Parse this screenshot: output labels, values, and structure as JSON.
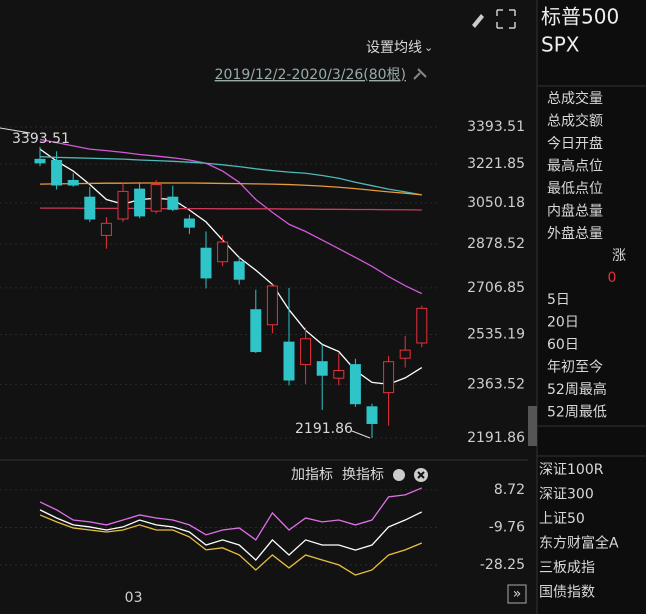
{
  "toolbar": {
    "ma_setting": "设置均线",
    "range": "2019/12/2-2020/3/26(80根)",
    "add_indicator": "加指标",
    "switch_indicator": "换指标"
  },
  "chart_data": [
    {
      "type": "candlestick",
      "log_scale": true,
      "ylim": [
        2131,
        3575
      ],
      "yticks": [
        {
          "value": 3393.51,
          "label": "3393.51"
        },
        {
          "value": 3221.85,
          "label": "3221.85"
        },
        {
          "value": 3050.18,
          "label": "3050.18"
        },
        {
          "value": 2878.52,
          "label": "2878.52"
        },
        {
          "value": 2706.85,
          "label": "2706.85"
        },
        {
          "value": 2535.19,
          "label": "2535.19"
        },
        {
          "value": 2363.52,
          "label": "2363.52"
        },
        {
          "value": 2191.86,
          "label": "2191.86"
        }
      ],
      "grid": true,
      "up_color": "#e8313a",
      "down_color": "#2ec4c8",
      "open": [
        3243,
        3238,
        3148,
        3075,
        2914,
        2982,
        3110,
        3015,
        3075,
        2982,
        2862,
        2808,
        2808,
        2625,
        2570,
        2508,
        2430,
        2440,
        2384,
        2430,
        2290,
        2336,
        2452,
        2505
      ],
      "high": [
        3300,
        3280,
        3180,
        3120,
        2990,
        3140,
        3140,
        3150,
        3125,
        3000,
        2930,
        2915,
        2830,
        2700,
        2720,
        2707,
        2560,
        2500,
        2470,
        2450,
        2300,
        2460,
        2530,
        2640
      ],
      "low": [
        3212,
        3108,
        3120,
        2970,
        2860,
        2970,
        2985,
        3005,
        3015,
        2920,
        2705,
        2790,
        2720,
        2470,
        2540,
        2360,
        2365,
        2280,
        2360,
        2290,
        2191.86,
        2230,
        2420,
        2490
      ],
      "close": [
        3227,
        3128,
        3128,
        2982,
        2964,
        3100,
        2995,
        3130,
        3023,
        2948,
        2745,
        2887,
        2740,
        2475,
        2714,
        2378,
        2520,
        2394,
        2410,
        2300,
        2237,
        2440,
        2480,
        2630
      ],
      "series": [
        {
          "color": "#ffffff",
          "values": [
            3290,
            3235,
            3190,
            3130,
            3065,
            3045,
            3065,
            3070,
            3065,
            3020,
            2970,
            2895,
            2825,
            2775,
            2720,
            2625,
            2550,
            2500,
            2475,
            2410,
            2370,
            2364,
            2385,
            2420
          ]
        },
        {
          "color": "#d05ad8",
          "values": [
            3335,
            3320,
            3305,
            3290,
            3283,
            3275,
            3265,
            3258,
            3250,
            3240,
            3225,
            3190,
            3140,
            3065,
            3010,
            2960,
            2930,
            2895,
            2860,
            2825,
            2790,
            2750,
            2715,
            2685
          ]
        },
        {
          "color": "#4fb8b8",
          "values": [
            3255,
            3252,
            3250,
            3248,
            3246,
            3244,
            3240,
            3237,
            3234,
            3230,
            3225,
            3218,
            3210,
            3200,
            3192,
            3185,
            3180,
            3170,
            3158,
            3140,
            3125,
            3110,
            3098,
            3085
          ]
        },
        {
          "color": "#e89a3c",
          "values": [
            3132,
            3133,
            3134,
            3135,
            3136,
            3136,
            3137,
            3137,
            3137,
            3137,
            3136,
            3135,
            3134,
            3133,
            3132,
            3130,
            3127,
            3123,
            3118,
            3112,
            3105,
            3098,
            3092,
            3085
          ]
        },
        {
          "color": "#d03a5a",
          "values": [
            3028,
            3028,
            3028,
            3027,
            3027,
            3027,
            3027,
            3026,
            3026,
            3026,
            3026,
            3025,
            3025,
            3025,
            3025,
            3024,
            3024,
            3023,
            3023,
            3022,
            3022,
            3021,
            3021,
            3020
          ]
        }
      ],
      "annotations": [
        {
          "text": "3393.51"
        },
        {
          "text": "2191.86"
        }
      ]
    },
    {
      "type": "line",
      "ylim": [
        -44.5,
        21
      ],
      "yticks": [
        8.72,
        -9.76,
        -28.25
      ],
      "categories": [
        null,
        null,
        null,
        null,
        null,
        null,
        "03",
        null,
        null,
        null,
        null,
        null,
        null,
        null,
        null,
        null,
        null,
        null,
        null,
        null,
        null,
        null,
        null,
        null
      ],
      "series": [
        {
          "color": "#e070e8",
          "values": [
            2.8,
            -1.1,
            -6.1,
            -7.0,
            -8.5,
            -6.1,
            -3.6,
            -5.1,
            -6.1,
            -8.5,
            -13.4,
            -11.0,
            -10.0,
            -15.9,
            -2.6,
            -11.0,
            -5.1,
            -7.0,
            -6.1,
            -8.5,
            -6.1,
            5.3,
            6.3,
            9.7
          ]
        },
        {
          "color": "#ffffff",
          "values": [
            -1.1,
            -5.1,
            -8.5,
            -9.5,
            -11.0,
            -9.5,
            -6.1,
            -8.5,
            -9.5,
            -12.0,
            -18.4,
            -15.9,
            -18.4,
            -25.8,
            -15.9,
            -23.3,
            -15.9,
            -18.4,
            -18.4,
            -20.9,
            -18.4,
            -9.5,
            -6.1,
            -2.1
          ]
        },
        {
          "color": "#e8c040",
          "values": [
            -3.6,
            -7.0,
            -10.0,
            -11.0,
            -12.0,
            -11.0,
            -8.5,
            -11.0,
            -11.0,
            -14.4,
            -20.8,
            -19.8,
            -23.3,
            -30.7,
            -23.3,
            -29.7,
            -23.3,
            -25.8,
            -28.2,
            -33.2,
            -30.7,
            -23.3,
            -20.8,
            -17.4
          ]
        }
      ]
    }
  ],
  "sidebar": {
    "name": "标普500",
    "code": "SPX",
    "fields": [
      "总成交量",
      "总成交额",
      "今日开盘",
      "最高点位",
      "最低点位",
      "内盘总量",
      "外盘总量"
    ],
    "change_label": "涨",
    "change_value": "0",
    "periods": [
      "5日",
      "20日",
      "60日",
      "年初至今",
      "52周最高",
      "52周最低"
    ],
    "indices": [
      "深证100R",
      "深证300",
      "上证50",
      "东方财富全A",
      "三板成指",
      "国债指数"
    ]
  }
}
